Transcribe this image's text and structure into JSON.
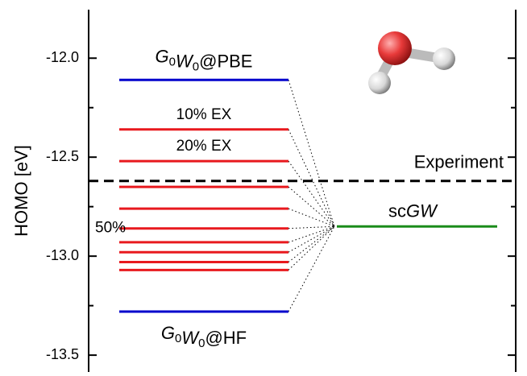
{
  "chart_data": {
    "type": "level",
    "ylabel": "HOMO [eV]",
    "ylim": [
      -13.585,
      -11.755
    ],
    "yticks": [
      {
        "value": -12,
        "label": "-12.0"
      },
      {
        "value": -12.5,
        "label": "-12.5"
      },
      {
        "value": -13,
        "label": "-13.0"
      },
      {
        "value": -13.5,
        "label": "-13.5"
      }
    ],
    "minor_yticks": [
      -12.25,
      -12.75,
      -13.25
    ],
    "levels": [
      {
        "value": -12.11,
        "color": "#0000cc",
        "label_parts": [
          "G",
          "0",
          "W",
          "0",
          "@PBE"
        ]
      },
      {
        "value": -12.36,
        "color": "#e8191e",
        "label": "10% EX"
      },
      {
        "value": -12.52,
        "color": "#e8191e",
        "label": "20% EX"
      },
      {
        "value": -12.65,
        "color": "#e8191e"
      },
      {
        "value": -12.76,
        "color": "#e8191e"
      },
      {
        "value": -12.86,
        "color": "#e8191e",
        "label": "50%"
      },
      {
        "value": -12.93,
        "color": "#e8191e"
      },
      {
        "value": -12.98,
        "color": "#e8191e"
      },
      {
        "value": -13.03,
        "color": "#e8191e"
      },
      {
        "value": -13.07,
        "color": "#e8191e"
      },
      {
        "value": -13.28,
        "color": "#0000cc",
        "label_parts": [
          "G",
          "0",
          "W",
          "0",
          "@HF"
        ]
      }
    ],
    "reference": {
      "name": "Experiment",
      "value": -12.62,
      "color": "#000000"
    },
    "target": {
      "label_parts": [
        "sc",
        "GW"
      ],
      "value": -12.85,
      "color": "#1a8c1a"
    }
  }
}
